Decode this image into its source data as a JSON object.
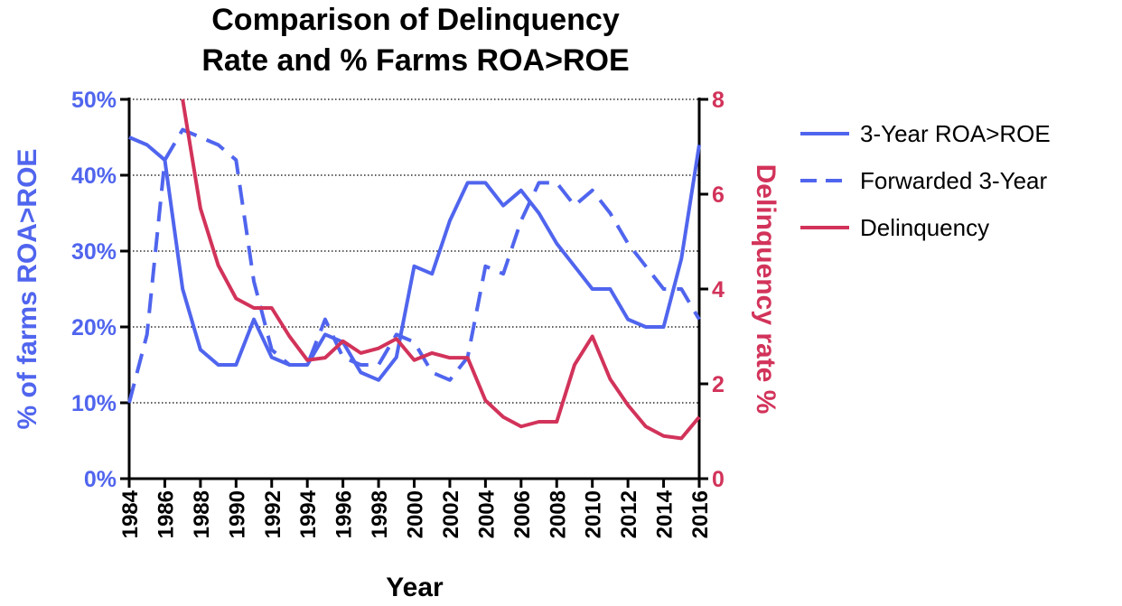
{
  "chart_data": {
    "type": "line",
    "title": [
      "Comparison of Delinquency",
      "Rate and % Farms ROA>ROE"
    ],
    "x_label": "Year",
    "y_label": "% of farms ROA>ROE",
    "y2_label": "Delinquency rate %",
    "x": [
      1984,
      1985,
      1986,
      1987,
      1988,
      1989,
      1990,
      1991,
      1992,
      1993,
      1994,
      1995,
      1996,
      1997,
      1998,
      1999,
      2000,
      2001,
      2002,
      2003,
      2004,
      2005,
      2006,
      2007,
      2008,
      2009,
      2010,
      2011,
      2012,
      2013,
      2014,
      2015,
      2016
    ],
    "xlim": [
      1984,
      2016
    ],
    "xticks": [
      1984,
      1986,
      1988,
      1990,
      1992,
      1994,
      1996,
      1998,
      2000,
      2002,
      2004,
      2006,
      2008,
      2010,
      2012,
      2014,
      2016
    ],
    "ylim": [
      0,
      50
    ],
    "yticks": [
      {
        "value": 0,
        "label": "0%"
      },
      {
        "value": 10,
        "label": "10%"
      },
      {
        "value": 20,
        "label": "20%"
      },
      {
        "value": 30,
        "label": "30%"
      },
      {
        "value": 40,
        "label": "40%"
      },
      {
        "value": 50,
        "label": "50%"
      }
    ],
    "y2lim": [
      0,
      8
    ],
    "y2ticks": [
      0,
      2,
      4,
      6,
      8
    ],
    "grid": true,
    "y_color": "#5065ee",
    "y2_color": "#d2335a",
    "series": [
      {
        "name": "3-Year ROA>ROE",
        "color": "#5065ee",
        "line_style": "solid",
        "values": [
          45,
          44,
          42,
          25,
          17,
          15,
          15,
          21,
          16,
          15,
          15,
          19,
          18,
          14,
          13,
          16,
          28,
          27,
          34,
          39,
          39,
          36,
          38,
          35,
          31,
          28,
          25,
          25,
          21,
          20,
          20,
          29,
          44
        ]
      },
      {
        "name": "Forwarded 3-Year",
        "color": "#5065ee",
        "line_style": "dashed",
        "values": [
          10,
          19,
          42,
          46,
          45,
          44,
          42,
          26,
          17,
          15,
          15,
          21,
          16,
          15,
          15,
          19,
          18,
          14,
          13,
          16,
          28,
          27,
          34,
          39,
          39,
          36,
          38,
          35,
          31,
          28,
          25,
          25,
          21
        ]
      },
      {
        "name": "Delinquency",
        "color": "#d2335a",
        "line_style": "solid",
        "axis": "y2",
        "values": [
          null,
          null,
          null,
          8,
          5.7,
          4.5,
          3.8,
          3.6,
          3.6,
          3.0,
          2.5,
          2.55,
          2.9,
          2.65,
          2.75,
          2.95,
          2.5,
          2.65,
          2.55,
          2.55,
          1.65,
          1.3,
          1.1,
          1.2,
          1.2,
          2.4,
          3.0,
          2.1,
          1.55,
          1.1,
          0.9,
          0.85,
          1.3
        ]
      }
    ]
  }
}
